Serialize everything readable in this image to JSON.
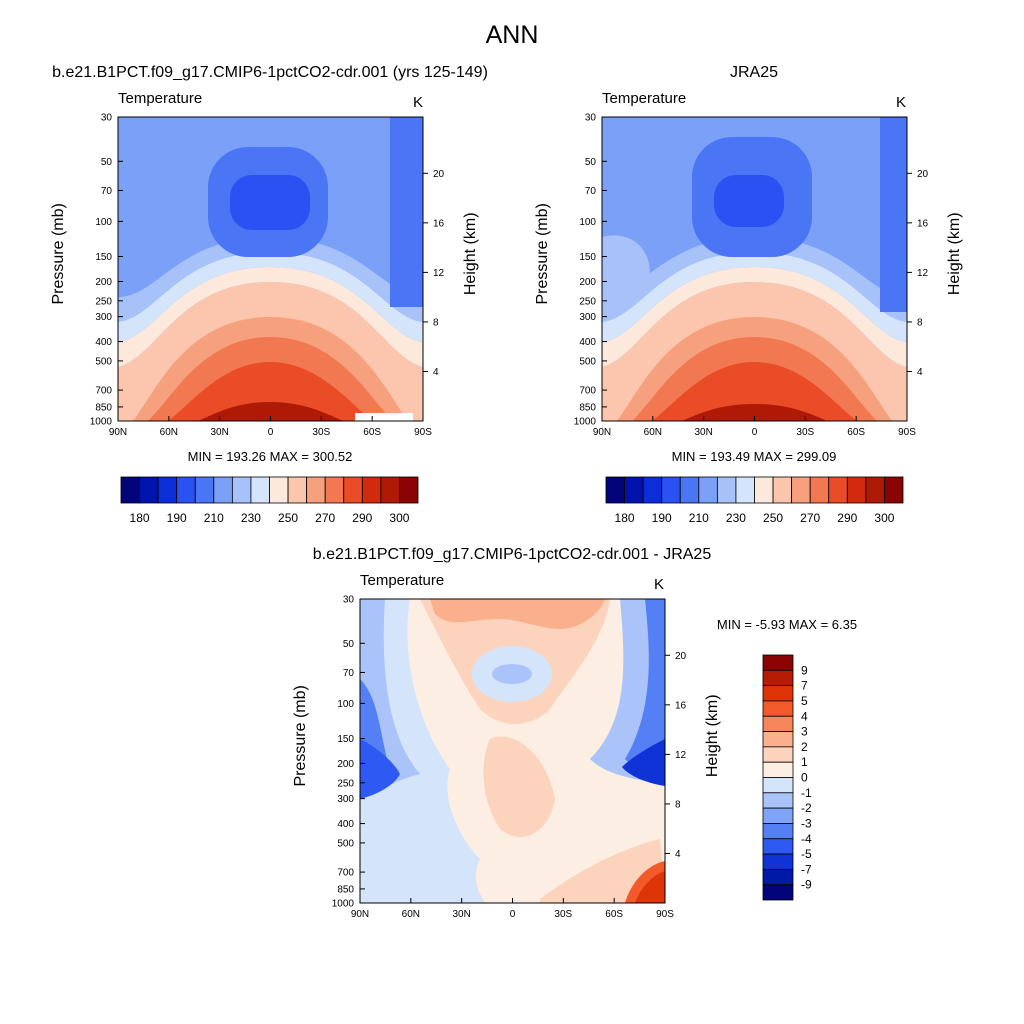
{
  "title": "ANN",
  "chart_data": [
    {
      "id": "model",
      "type": "heatmap",
      "title": "b.e21.B1PCT.f09_g17.CMIP6-1pctCO2-cdr.001 (yrs 125-149)",
      "variable": "Temperature",
      "units": "K",
      "ylabel": "Pressure (mb)",
      "y2label": "Height (km)",
      "xticks": [
        "90N",
        "60N",
        "30N",
        "0",
        "30S",
        "60S",
        "90S"
      ],
      "xlim": [
        90,
        -90
      ],
      "yticks": [
        "30",
        "50",
        "70",
        "100",
        "150",
        "200",
        "250",
        "300",
        "400",
        "500",
        "700",
        "850",
        "1000"
      ],
      "ylim": [
        1000,
        30
      ],
      "y2ticks": [
        "20",
        "16",
        "12",
        "8",
        "4"
      ],
      "minmax_text": "MIN = 193.26  MAX = 300.52",
      "min": 193.26,
      "max": 300.52,
      "colorbar_colors": [
        "#03047a",
        "#0014ad",
        "#0c2ed8",
        "#2a52f2",
        "#4a75f5",
        "#7aa0f7",
        "#a7c2f9",
        "#d4e4fb",
        "#fde8dc",
        "#fbc6ad",
        "#f7a07e",
        "#f27852",
        "#ea4c28",
        "#d22a0c",
        "#af1a06",
        "#8a0404"
      ],
      "colorbar_labels": [
        "180",
        "190",
        "210",
        "230",
        "250",
        "270",
        "290",
        "300"
      ]
    },
    {
      "id": "obs",
      "type": "heatmap",
      "title": "JRA25",
      "variable": "Temperature",
      "units": "K",
      "ylabel": "Pressure (mb)",
      "y2label": "Height (km)",
      "xticks": [
        "90N",
        "60N",
        "30N",
        "0",
        "30S",
        "60S",
        "90S"
      ],
      "xlim": [
        90,
        -90
      ],
      "yticks": [
        "30",
        "50",
        "70",
        "100",
        "150",
        "200",
        "250",
        "300",
        "400",
        "500",
        "700",
        "850",
        "1000"
      ],
      "ylim": [
        1000,
        30
      ],
      "y2ticks": [
        "20",
        "16",
        "12",
        "8",
        "4"
      ],
      "minmax_text": "MIN = 193.49  MAX = 299.09",
      "min": 193.49,
      "max": 299.09,
      "colorbar_colors": [
        "#03047a",
        "#0014ad",
        "#0c2ed8",
        "#2a52f2",
        "#4a75f5",
        "#7aa0f7",
        "#a7c2f9",
        "#d4e4fb",
        "#fde8dc",
        "#fbc6ad",
        "#f7a07e",
        "#f27852",
        "#ea4c28",
        "#d22a0c",
        "#af1a06",
        "#8a0404"
      ],
      "colorbar_labels": [
        "180",
        "190",
        "210",
        "230",
        "250",
        "270",
        "290",
        "300"
      ]
    },
    {
      "id": "diff",
      "type": "heatmap",
      "title": "b.e21.B1PCT.f09_g17.CMIP6-1pctCO2-cdr.001 - JRA25",
      "variable": "Temperature",
      "units": "K",
      "ylabel": "Pressure (mb)",
      "y2label": "Height (km)",
      "xticks": [
        "90N",
        "60N",
        "30N",
        "0",
        "30S",
        "60S",
        "90S"
      ],
      "xlim": [
        90,
        -90
      ],
      "yticks": [
        "30",
        "50",
        "70",
        "100",
        "150",
        "200",
        "250",
        "300",
        "400",
        "500",
        "700",
        "850",
        "1000"
      ],
      "ylim": [
        1000,
        30
      ],
      "y2ticks": [
        "20",
        "16",
        "12",
        "8",
        "4"
      ],
      "minmax_text": "MIN =  -5.93  MAX =   6.35",
      "min": -5.93,
      "max": 6.35,
      "colorbar_colors": [
        "#8a0404",
        "#b51b05",
        "#dd3508",
        "#f25a2a",
        "#f7865a",
        "#fab08c",
        "#fcd3bd",
        "#fdeee3",
        "#d4e4fb",
        "#aac4f9",
        "#7ea3f7",
        "#5580f5",
        "#2e59f2",
        "#0e33d6",
        "#001aa8",
        "#03047a"
      ],
      "colorbar_labels": [
        "9",
        "7",
        "5",
        "4",
        "3",
        "2",
        "1",
        "0",
        "-1",
        "-2",
        "-3",
        "-4",
        "-5",
        "-7",
        "-9"
      ]
    }
  ]
}
